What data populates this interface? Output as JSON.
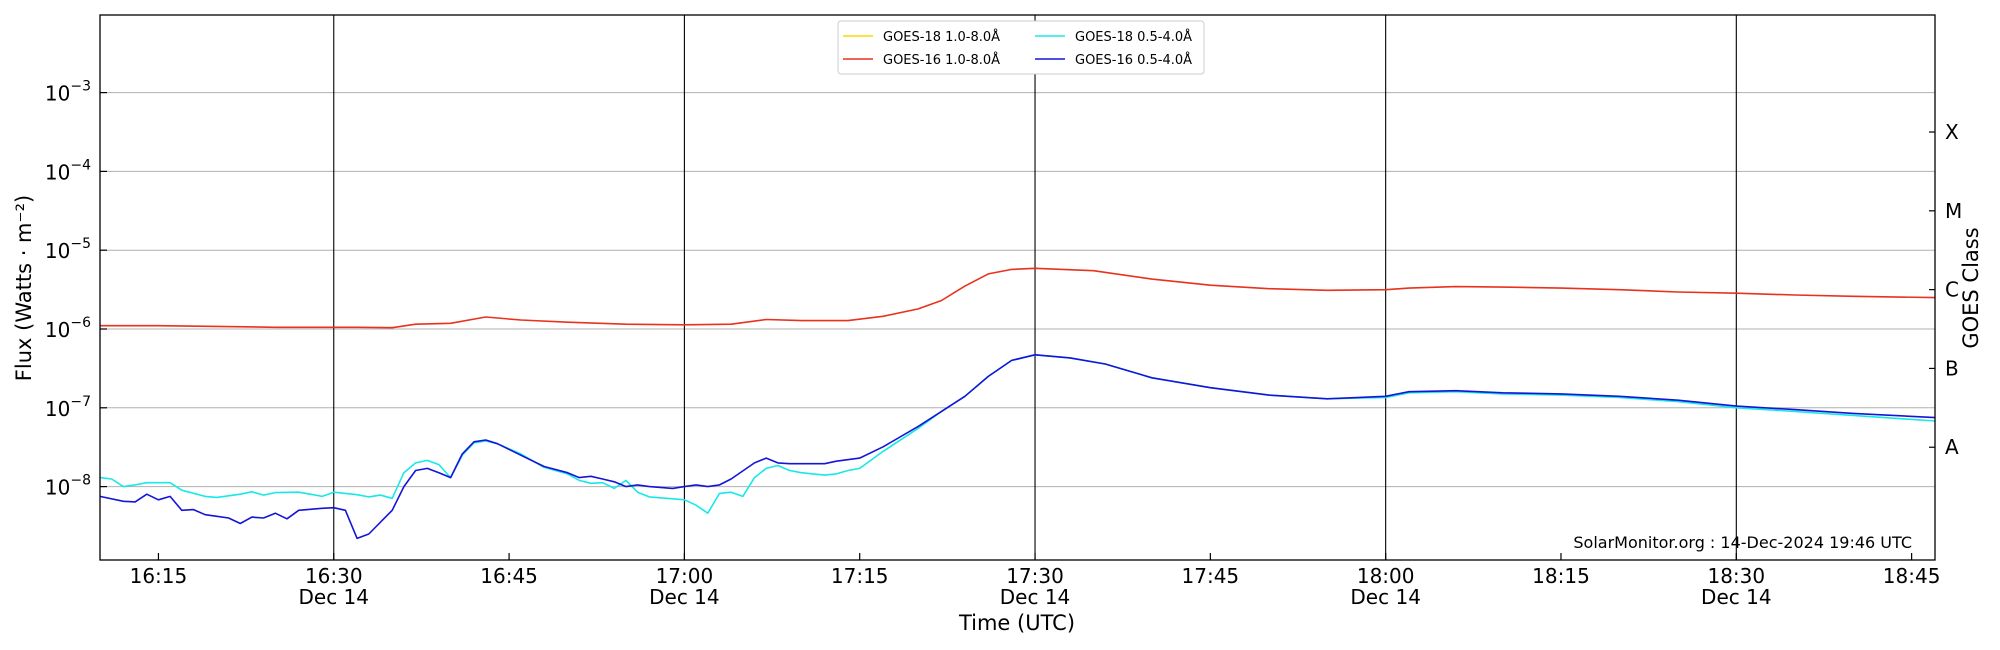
{
  "chart_data": {
    "type": "line",
    "xlabel": "Time (UTC)",
    "ylabel": "Flux (Watts · m⁻²)",
    "right_ylabel": "GOES Class",
    "credit": "SolarMonitor.org : 14-Dec-2024 19:46 UTC",
    "y_scale": "log",
    "ylim": [
      1.5e-09,
      0.01
    ],
    "xlim": [
      "16:10",
      "18:47"
    ],
    "grid": "horizontal at decades, vertical at each half hour",
    "legend_position": "top-center",
    "y_ticks": [
      {
        "value": 0.001,
        "base": "10",
        "exp": "−3"
      },
      {
        "value": 0.0001,
        "base": "10",
        "exp": "−4"
      },
      {
        "value": 1e-05,
        "base": "10",
        "exp": "−5"
      },
      {
        "value": 1e-06,
        "base": "10",
        "exp": "−6"
      },
      {
        "value": 1e-07,
        "base": "10",
        "exp": "−7"
      },
      {
        "value": 1e-08,
        "base": "10",
        "exp": "−8"
      }
    ],
    "x_ticks": [
      {
        "time": "16:15",
        "label": "16:15",
        "sublabel": ""
      },
      {
        "time": "16:30",
        "label": "16:30",
        "sublabel": "Dec 14"
      },
      {
        "time": "16:45",
        "label": "16:45",
        "sublabel": ""
      },
      {
        "time": "17:00",
        "label": "17:00",
        "sublabel": "Dec 14"
      },
      {
        "time": "17:15",
        "label": "17:15",
        "sublabel": ""
      },
      {
        "time": "17:30",
        "label": "17:30",
        "sublabel": "Dec 14"
      },
      {
        "time": "17:45",
        "label": "17:45",
        "sublabel": ""
      },
      {
        "time": "18:00",
        "label": "18:00",
        "sublabel": "Dec 14"
      },
      {
        "time": "18:15",
        "label": "18:15",
        "sublabel": ""
      },
      {
        "time": "18:30",
        "label": "18:30",
        "sublabel": "Dec 14"
      },
      {
        "time": "18:45",
        "label": "18:45",
        "sublabel": ""
      }
    ],
    "goes_classes": [
      {
        "label": "A",
        "flux": 3.16e-08
      },
      {
        "label": "B",
        "flux": 3.16e-07
      },
      {
        "label": "C",
        "flux": 3.16e-06
      },
      {
        "label": "M",
        "flux": 3.16e-05
      },
      {
        "label": "X",
        "flux": 0.000316
      }
    ],
    "series": [
      {
        "name": "GOES-18 1.0-8.0Å",
        "color": "#ffd700",
        "points": []
      },
      {
        "name": "GOES-16 1.0-8.0Å",
        "color": "#e8321e",
        "points": [
          [
            "16:10",
            1.1e-06
          ],
          [
            "16:15",
            1.1e-06
          ],
          [
            "16:20",
            1.08e-06
          ],
          [
            "16:25",
            1.05e-06
          ],
          [
            "16:28",
            1.05e-06
          ],
          [
            "16:32",
            1.05e-06
          ],
          [
            "16:35",
            1.04e-06
          ],
          [
            "16:37",
            1.15e-06
          ],
          [
            "16:40",
            1.18e-06
          ],
          [
            "16:43",
            1.42e-06
          ],
          [
            "16:46",
            1.3e-06
          ],
          [
            "16:50",
            1.22e-06
          ],
          [
            "16:55",
            1.15e-06
          ],
          [
            "17:00",
            1.13e-06
          ],
          [
            "17:04",
            1.15e-06
          ],
          [
            "17:07",
            1.32e-06
          ],
          [
            "17:10",
            1.28e-06
          ],
          [
            "17:14",
            1.28e-06
          ],
          [
            "17:17",
            1.45e-06
          ],
          [
            "17:20",
            1.8e-06
          ],
          [
            "17:22",
            2.3e-06
          ],
          [
            "17:24",
            3.5e-06
          ],
          [
            "17:26",
            5e-06
          ],
          [
            "17:28",
            5.7e-06
          ],
          [
            "17:30",
            5.9e-06
          ],
          [
            "17:35",
            5.5e-06
          ],
          [
            "17:40",
            4.3e-06
          ],
          [
            "17:45",
            3.6e-06
          ],
          [
            "17:50",
            3.25e-06
          ],
          [
            "17:55",
            3.1e-06
          ],
          [
            "18:00",
            3.15e-06
          ],
          [
            "18:02",
            3.3e-06
          ],
          [
            "18:06",
            3.45e-06
          ],
          [
            "18:10",
            3.4e-06
          ],
          [
            "18:15",
            3.3e-06
          ],
          [
            "18:20",
            3.15e-06
          ],
          [
            "18:25",
            2.95e-06
          ],
          [
            "18:30",
            2.85e-06
          ],
          [
            "18:35",
            2.7e-06
          ],
          [
            "18:40",
            2.6e-06
          ],
          [
            "18:47",
            2.5e-06
          ]
        ]
      },
      {
        "name": "GOES-18 0.5-4.0Å",
        "color": "#18e8e8",
        "points": [
          [
            "16:10",
            1.3e-08
          ],
          [
            "16:11",
            1.25e-08
          ],
          [
            "16:12",
            1e-08
          ],
          [
            "16:13",
            1.05e-08
          ],
          [
            "16:14",
            1.12e-08
          ],
          [
            "16:16",
            1.12e-08
          ],
          [
            "16:17",
            9e-09
          ],
          [
            "16:19",
            7.5e-09
          ],
          [
            "16:20",
            7.3e-09
          ],
          [
            "16:22",
            8e-09
          ],
          [
            "16:23",
            8.6e-09
          ],
          [
            "16:24",
            7.8e-09
          ],
          [
            "16:25",
            8.4e-09
          ],
          [
            "16:27",
            8.5e-09
          ],
          [
            "16:28",
            8e-09
          ],
          [
            "16:29",
            7.5e-09
          ],
          [
            "16:30",
            8.5e-09
          ],
          [
            "16:32",
            7.9e-09
          ],
          [
            "16:33",
            7.4e-09
          ],
          [
            "16:34",
            7.8e-09
          ],
          [
            "16:35",
            7.1e-09
          ],
          [
            "16:36",
            1.5e-08
          ],
          [
            "16:37",
            2e-08
          ],
          [
            "16:38",
            2.15e-08
          ],
          [
            "16:39",
            1.9e-08
          ],
          [
            "16:40",
            1.3e-08
          ],
          [
            "16:41",
            2.5e-08
          ],
          [
            "16:42",
            3.6e-08
          ],
          [
            "16:43",
            3.8e-08
          ],
          [
            "16:44",
            3.5e-08
          ],
          [
            "16:46",
            2.6e-08
          ],
          [
            "16:48",
            1.75e-08
          ],
          [
            "16:50",
            1.45e-08
          ],
          [
            "16:51",
            1.2e-08
          ],
          [
            "16:52",
            1.1e-08
          ],
          [
            "16:53",
            1.12e-08
          ],
          [
            "16:54",
            9.5e-09
          ],
          [
            "16:55",
            1.2e-08
          ],
          [
            "16:56",
            8.5e-09
          ],
          [
            "16:57",
            7.4e-09
          ],
          [
            "16:59",
            7e-09
          ],
          [
            "17:00",
            6.8e-09
          ],
          [
            "17:01",
            5.8e-09
          ],
          [
            "17:02",
            4.6e-09
          ],
          [
            "17:03",
            8.2e-09
          ],
          [
            "17:04",
            8.5e-09
          ],
          [
            "17:05",
            7.5e-09
          ],
          [
            "17:06",
            1.3e-08
          ],
          [
            "17:07",
            1.7e-08
          ],
          [
            "17:08",
            1.85e-08
          ],
          [
            "17:09",
            1.6e-08
          ],
          [
            "17:10",
            1.5e-08
          ],
          [
            "17:11",
            1.45e-08
          ],
          [
            "17:12",
            1.4e-08
          ],
          [
            "17:13",
            1.45e-08
          ],
          [
            "17:14",
            1.6e-08
          ],
          [
            "17:15",
            1.7e-08
          ],
          [
            "17:17",
            2.8e-08
          ],
          [
            "17:20",
            5.5e-08
          ],
          [
            "17:22",
            9e-08
          ],
          [
            "17:24",
            1.4e-07
          ],
          [
            "17:26",
            2.5e-07
          ],
          [
            "17:28",
            4e-07
          ],
          [
            "17:30",
            4.7e-07
          ],
          [
            "17:33",
            4.3e-07
          ],
          [
            "17:36",
            3.6e-07
          ],
          [
            "17:40",
            2.4e-07
          ],
          [
            "17:45",
            1.8e-07
          ],
          [
            "17:50",
            1.45e-07
          ],
          [
            "17:55",
            1.3e-07
          ],
          [
            "18:00",
            1.35e-07
          ],
          [
            "18:02",
            1.55e-07
          ],
          [
            "18:06",
            1.6e-07
          ],
          [
            "18:10",
            1.5e-07
          ],
          [
            "18:15",
            1.45e-07
          ],
          [
            "18:20",
            1.35e-07
          ],
          [
            "18:25",
            1.2e-07
          ],
          [
            "18:30",
            1e-07
          ],
          [
            "18:35",
            9e-08
          ],
          [
            "18:40",
            8e-08
          ],
          [
            "18:47",
            6.8e-08
          ]
        ]
      },
      {
        "name": "GOES-16 0.5-4.0Å",
        "color": "#1515d8",
        "points": [
          [
            "16:10",
            7.5e-09
          ],
          [
            "16:12",
            6.5e-09
          ],
          [
            "16:13",
            6.4e-09
          ],
          [
            "16:14",
            8e-09
          ],
          [
            "16:15",
            6.8e-09
          ],
          [
            "16:16",
            7.5e-09
          ],
          [
            "16:17",
            5e-09
          ],
          [
            "16:18",
            5.1e-09
          ],
          [
            "16:19",
            4.4e-09
          ],
          [
            "16:20",
            4.2e-09
          ],
          [
            "16:21",
            4e-09
          ],
          [
            "16:22",
            3.4e-09
          ],
          [
            "16:23",
            4.1e-09
          ],
          [
            "16:24",
            4e-09
          ],
          [
            "16:25",
            4.6e-09
          ],
          [
            "16:26",
            3.9e-09
          ],
          [
            "16:27",
            5e-09
          ],
          [
            "16:29",
            5.3e-09
          ],
          [
            "16:30",
            5.4e-09
          ],
          [
            "16:31",
            5e-09
          ],
          [
            "16:32",
            2.2e-09
          ],
          [
            "16:33",
            2.5e-09
          ],
          [
            "16:35",
            5e-09
          ],
          [
            "16:36",
            1e-08
          ],
          [
            "16:37",
            1.6e-08
          ],
          [
            "16:38",
            1.7e-08
          ],
          [
            "16:39",
            1.5e-08
          ],
          [
            "16:40",
            1.3e-08
          ],
          [
            "16:41",
            2.6e-08
          ],
          [
            "16:42",
            3.7e-08
          ],
          [
            "16:43",
            3.9e-08
          ],
          [
            "16:44",
            3.5e-08
          ],
          [
            "16:46",
            2.5e-08
          ],
          [
            "16:48",
            1.8e-08
          ],
          [
            "16:50",
            1.5e-08
          ],
          [
            "16:51",
            1.3e-08
          ],
          [
            "16:52",
            1.35e-08
          ],
          [
            "16:53",
            1.25e-08
          ],
          [
            "16:54",
            1.15e-08
          ],
          [
            "16:55",
            1e-08
          ],
          [
            "16:56",
            1.05e-08
          ],
          [
            "16:57",
            1e-08
          ],
          [
            "16:59",
            9.5e-09
          ],
          [
            "17:00",
            1e-08
          ],
          [
            "17:01",
            1.05e-08
          ],
          [
            "17:02",
            1e-08
          ],
          [
            "17:03",
            1.05e-08
          ],
          [
            "17:04",
            1.25e-08
          ],
          [
            "17:06",
            2e-08
          ],
          [
            "17:07",
            2.3e-08
          ],
          [
            "17:08",
            2e-08
          ],
          [
            "17:09",
            1.95e-08
          ],
          [
            "17:12",
            1.95e-08
          ],
          [
            "17:13",
            2.1e-08
          ],
          [
            "17:15",
            2.3e-08
          ],
          [
            "17:17",
            3.2e-08
          ],
          [
            "17:20",
            5.8e-08
          ],
          [
            "17:22",
            9e-08
          ],
          [
            "17:24",
            1.4e-07
          ],
          [
            "17:26",
            2.5e-07
          ],
          [
            "17:28",
            4e-07
          ],
          [
            "17:30",
            4.7e-07
          ],
          [
            "17:33",
            4.3e-07
          ],
          [
            "17:36",
            3.6e-07
          ],
          [
            "17:40",
            2.4e-07
          ],
          [
            "17:45",
            1.8e-07
          ],
          [
            "17:50",
            1.45e-07
          ],
          [
            "17:55",
            1.3e-07
          ],
          [
            "18:00",
            1.4e-07
          ],
          [
            "18:02",
            1.6e-07
          ],
          [
            "18:06",
            1.65e-07
          ],
          [
            "18:10",
            1.55e-07
          ],
          [
            "18:15",
            1.5e-07
          ],
          [
            "18:20",
            1.4e-07
          ],
          [
            "18:25",
            1.25e-07
          ],
          [
            "18:30",
            1.05e-07
          ],
          [
            "18:35",
            9.5e-08
          ],
          [
            "18:40",
            8.5e-08
          ],
          [
            "18:47",
            7.5e-08
          ]
        ]
      }
    ]
  }
}
